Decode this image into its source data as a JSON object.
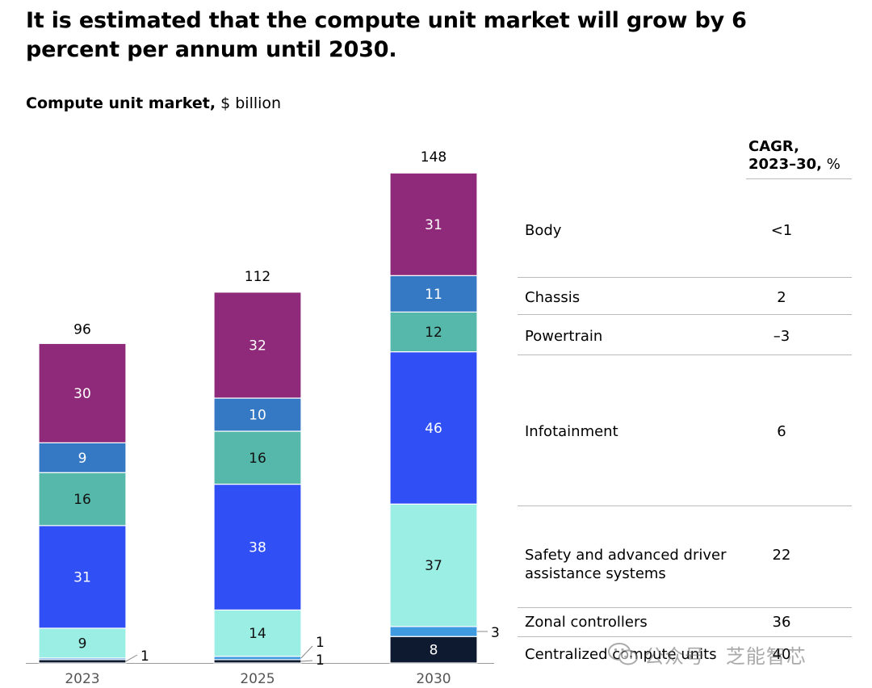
{
  "headline": "It is estimated that the compute unit market will grow by 6 percent per annum until 2030.",
  "subtitle": {
    "bold": "Compute unit market,",
    "unit": " $ billion"
  },
  "watermark": {
    "text": "公众号 · 芝能智芯",
    "icon": "wechat-icon"
  },
  "chart_data": {
    "type": "bar",
    "stacked": true,
    "title": "Compute unit market, $ billion",
    "categories": [
      "2023",
      "2025",
      "2030"
    ],
    "totals": [
      "96",
      "112",
      "148"
    ],
    "total_values": [
      96,
      112,
      148
    ],
    "series": [
      {
        "name": "Centralized compute units",
        "color": "#0d1a2f",
        "values": [
          1,
          1,
          8
        ],
        "labels": [
          "1",
          "1",
          "8"
        ],
        "label_mode": [
          "callout",
          "callout",
          "inside"
        ],
        "cagr": "40"
      },
      {
        "name": "Zonal controllers",
        "color": "#3f9ae0",
        "values": [
          0.5,
          1,
          3
        ],
        "labels": [
          "",
          "1",
          "3"
        ],
        "label_mode": [
          "none",
          "callout",
          "callout"
        ],
        "cagr": "36"
      },
      {
        "name": "Safety and advanced driver assistance systems",
        "color": "#9beee4",
        "values": [
          9,
          14,
          37
        ],
        "labels": [
          "9",
          "14",
          "37"
        ],
        "label_mode": [
          "inside",
          "inside",
          "inside"
        ],
        "cagr": "22"
      },
      {
        "name": "Infotainment",
        "color": "#3050f5",
        "values": [
          31,
          38,
          46
        ],
        "labels": [
          "31",
          "38",
          "46"
        ],
        "label_mode": [
          "inside",
          "inside",
          "inside"
        ],
        "cagr": "6"
      },
      {
        "name": "Powertrain",
        "color": "#55b8aa",
        "values": [
          16,
          16,
          12
        ],
        "labels": [
          "16",
          "16",
          "12"
        ],
        "label_mode": [
          "inside",
          "inside",
          "inside"
        ],
        "cagr": "–3"
      },
      {
        "name": "Chassis",
        "color": "#3579c4",
        "values": [
          9,
          10,
          11
        ],
        "labels": [
          "9",
          "10",
          "11"
        ],
        "label_mode": [
          "inside",
          "inside",
          "inside"
        ],
        "cagr": "2"
      },
      {
        "name": "Body",
        "color": "#8e2a79",
        "values": [
          30,
          32,
          31
        ],
        "labels": [
          "30",
          "32",
          "31"
        ],
        "label_mode": [
          "inside",
          "inside",
          "inside"
        ],
        "cagr": "<1"
      }
    ],
    "cagr_header_line1": "CAGR,",
    "cagr_header_line2_bold": "2023–30,",
    "cagr_header_line2_unit": " %",
    "legend_rows": [
      {
        "name": "Body",
        "lines": [
          "Body"
        ],
        "cagr": "<1"
      },
      {
        "name": "Chassis",
        "lines": [
          "Chassis"
        ],
        "cagr": "2"
      },
      {
        "name": "Powertrain",
        "lines": [
          "Powertrain"
        ],
        "cagr": "–3"
      },
      {
        "name": "Infotainment",
        "lines": [
          "Infotainment"
        ],
        "cagr": "6"
      },
      {
        "name": "Safety and advanced driver assistance systems",
        "lines": [
          "Safety and advanced driver",
          "assistance systems"
        ],
        "cagr": "22"
      },
      {
        "name": "Zonal controllers",
        "lines": [
          "Zonal controllers"
        ],
        "cagr": "36"
      },
      {
        "name": "Centralized compute units",
        "lines": [
          "Centralized compute units"
        ],
        "cagr": "40"
      }
    ],
    "xlabel": "",
    "ylabel": "$ billion",
    "ylim": [
      0,
      148
    ]
  }
}
